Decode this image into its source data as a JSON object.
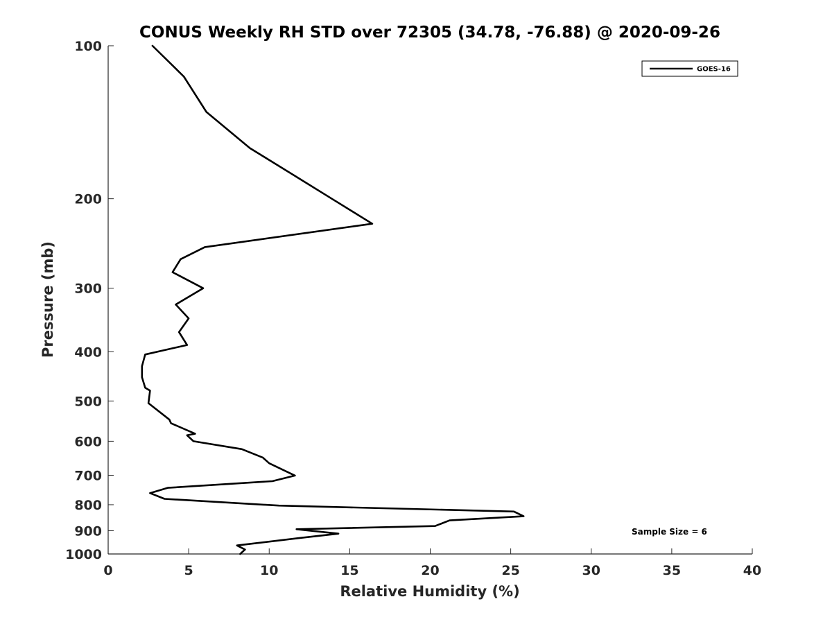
{
  "chart_data": {
    "type": "line",
    "title": "CONUS Weekly RH STD over 72305 (34.78, -76.88) @ 2020-09-26",
    "xlabel": "Relative Humidity (%)",
    "ylabel": "Pressure (mb)",
    "xlim": [
      0,
      40
    ],
    "ylim": [
      100,
      1000
    ],
    "y_scale": "log",
    "y_reversed": true,
    "x_ticks": [
      0,
      5,
      10,
      15,
      20,
      25,
      30,
      35,
      40
    ],
    "y_ticks": [
      100,
      200,
      300,
      400,
      500,
      600,
      700,
      800,
      900,
      1000
    ],
    "grid": false,
    "legend_position": "top-right",
    "annotation": "Sample Size = 6",
    "series": [
      {
        "name": "GOES-16",
        "color": "#000000",
        "points": [
          [
            2.75,
            100
          ],
          [
            4.7,
            115
          ],
          [
            6.1,
            135
          ],
          [
            8.8,
            159
          ],
          [
            11.8,
            182
          ],
          [
            14.0,
            201
          ],
          [
            16.4,
            224
          ],
          [
            6.0,
            249
          ],
          [
            4.5,
            263
          ],
          [
            4.0,
            279
          ],
          [
            5.9,
            300
          ],
          [
            4.2,
            323
          ],
          [
            5.0,
            344
          ],
          [
            4.4,
            366
          ],
          [
            4.9,
            388
          ],
          [
            2.3,
            405
          ],
          [
            2.1,
            427
          ],
          [
            2.1,
            449
          ],
          [
            2.3,
            471
          ],
          [
            2.6,
            477
          ],
          [
            2.5,
            505
          ],
          [
            3.8,
            544
          ],
          [
            3.9,
            553
          ],
          [
            5.4,
            580
          ],
          [
            4.9,
            584
          ],
          [
            5.3,
            600
          ],
          [
            8.3,
            622
          ],
          [
            9.6,
            646
          ],
          [
            10.0,
            663
          ],
          [
            11.6,
            701
          ],
          [
            10.2,
            719
          ],
          [
            3.7,
            741
          ],
          [
            2.6,
            759
          ],
          [
            3.5,
            779
          ],
          [
            10.6,
            803
          ],
          [
            25.2,
            825
          ],
          [
            25.8,
            843
          ],
          [
            21.2,
            859
          ],
          [
            20.3,
            881
          ],
          [
            11.7,
            894
          ],
          [
            14.3,
            912
          ],
          [
            11.9,
            930
          ],
          [
            8.0,
            962
          ],
          [
            8.5,
            980
          ],
          [
            8.2,
            1000
          ]
        ]
      }
    ]
  }
}
